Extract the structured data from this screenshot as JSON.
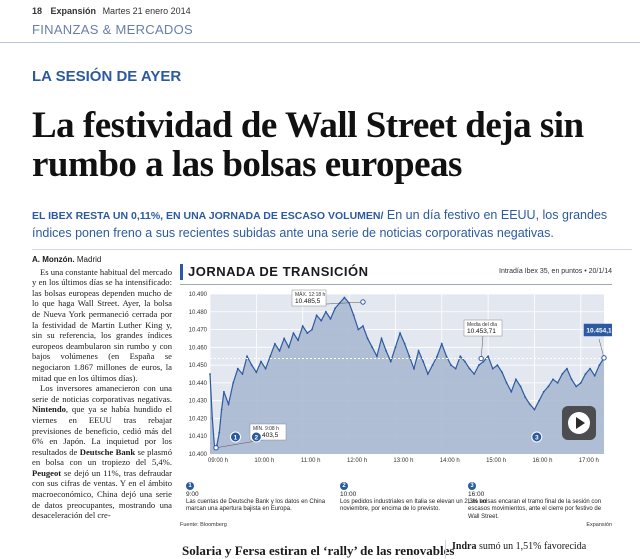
{
  "masthead": {
    "page_number": "18",
    "publication": "Expansión",
    "date": "Martes 21 enero 2014"
  },
  "section": "FINANZAS & MERCADOS",
  "kicker": "LA SESIÓN DE AYER",
  "headline": "La festividad de Wall Street deja sin rumbo a las bolsas europeas",
  "deck": {
    "lead": "EL IBEX RESTA UN 0,11%, EN UNA JORNADA DE ESCASO VOLUMEN/",
    "text": " En un día festivo en EEUU, los grandes índices ponen freno a sus recientes subidas ante una serie de noticias corporativas negativas."
  },
  "article": {
    "byline_name": "A. Monzón.",
    "byline_place": " Madrid",
    "p1": "Es una constante habitual del mercado y en los últimos días se ha intensificado: las bolsas europeas dependen mucho de lo que haga Wall Street. Ayer, la bolsa de Nueva York permaneció cerrada por la festividad de Martin Luther King y, sin su referencia, los grandes índices europeos deambularon sin rumbo y con bajos volúmenes (en España se negociaron 1.867 millones de euros, la mitad que en los últimos días).",
    "p2a": "Los inversores amanecieron con una serie de noticias corporativas negativas. ",
    "p2_bold": "Nintendo",
    "p2b": ", que ya se había hundido el viernes en EEUU tras rebajar previsiones de beneficio, cedió más del 6% en Japón. La inquietud por los resultados de ",
    "p2_bold2": "Deutsche Bank",
    "p2c": " se plasmó en bolsa con un tropiezo del 5,4%. ",
    "p2_bold3": "Peugeot",
    "p2d": " se dejó un 11%, tras defraudar con sus cifras de ventas. Y en el ámbito macroeconómico, China dejó una serie de datos preocupantes, mostrando una desaceleración del cre-"
  },
  "chart_data": {
    "type": "line",
    "title": "JORNADA DE TRANSICIÓN",
    "subtitle": "Intradía Ibex 35, en puntos • 20/1/14",
    "x_ticks": [
      "09:00 h",
      "10:00 h",
      "11:00 h",
      "12:00 h",
      "13:00 h",
      "14:00 h",
      "15:00 h",
      "16:00 h",
      "17:00 h"
    ],
    "y_ticks": [
      "10.490",
      "10.480",
      "10.470",
      "10.460",
      "10.450",
      "10.440",
      "10.430",
      "10.420",
      "10.410",
      "10.400"
    ],
    "ylim": [
      10400,
      10490
    ],
    "x_hours": [
      9.0,
      9.05,
      9.1,
      9.15,
      9.2,
      9.25,
      9.3,
      9.4,
      9.5,
      9.6,
      9.7,
      9.8,
      9.9,
      10.0,
      10.1,
      10.2,
      10.3,
      10.4,
      10.5,
      10.6,
      10.7,
      10.8,
      10.9,
      11.0,
      11.1,
      11.2,
      11.3,
      11.4,
      11.5,
      11.6,
      11.7,
      11.8,
      11.9,
      12.0,
      12.1,
      12.2,
      12.3,
      12.4,
      12.5,
      12.6,
      12.7,
      12.8,
      12.9,
      13.0,
      13.1,
      13.2,
      13.3,
      13.4,
      13.5,
      13.6,
      13.7,
      13.8,
      13.9,
      14.0,
      14.1,
      14.2,
      14.3,
      14.4,
      14.5,
      14.6,
      14.7,
      14.8,
      14.9,
      15.0,
      15.1,
      15.2,
      15.3,
      15.4,
      15.5,
      15.6,
      15.7,
      15.8,
      15.9,
      16.0,
      16.1,
      16.2,
      16.3,
      16.4,
      16.5,
      16.6,
      16.7,
      16.8,
      16.9,
      17.0,
      17.1,
      17.2,
      17.3,
      17.4,
      17.5
    ],
    "values": [
      10445,
      10420,
      10403,
      10405,
      10412,
      10425,
      10435,
      10428,
      10440,
      10448,
      10445,
      10455,
      10450,
      10446,
      10452,
      10448,
      10455,
      10462,
      10458,
      10465,
      10460,
      10468,
      10464,
      10472,
      10468,
      10470,
      10478,
      10475,
      10480,
      10476,
      10482,
      10485,
      10488,
      10485,
      10478,
      10470,
      10472,
      10465,
      10460,
      10455,
      10465,
      10458,
      10452,
      10460,
      10468,
      10462,
      10455,
      10448,
      10458,
      10452,
      10445,
      10450,
      10455,
      10462,
      10455,
      10450,
      10448,
      10455,
      10452,
      10448,
      10445,
      10450,
      10452,
      10455,
      10448,
      10450,
      10446,
      10440,
      10435,
      10442,
      10438,
      10432,
      10428,
      10425,
      10430,
      10435,
      10438,
      10442,
      10440,
      10445,
      10448,
      10442,
      10438,
      10440,
      10445,
      10448,
      10444,
      10450,
      10454
    ],
    "callouts": [
      {
        "label": "MÁX. 12:18 h",
        "value": "10.485,5",
        "x_hour": 12.3,
        "y": 10485.5
      },
      {
        "label": "MÍN. 9:08 h",
        "value": "10.403,5",
        "x_hour": 9.13,
        "y": 10403.5
      },
      {
        "label": "Media del día",
        "value": "10.453,71",
        "x_hour": 14.85,
        "y": 10453.71
      },
      {
        "label": "",
        "value": "10.454,1",
        "x_hour": 17.5,
        "y": 10454.1
      }
    ],
    "markers": [
      {
        "id": "1",
        "x_hour": 9.55
      },
      {
        "id": "2",
        "x_hour": 10.0
      },
      {
        "id": "3",
        "x_hour": 16.05
      }
    ]
  },
  "notes": [
    {
      "id": "1",
      "time": "9:00",
      "text": "Las cuentas de Deutsche Bank y los datos en China marcan una apertura bajista en Europa."
    },
    {
      "id": "2",
      "time": "10:00",
      "text": "Los pedidos industriales en Italia se elevan un 2,3% en noviembre, por encima de lo previsto."
    },
    {
      "id": "3",
      "time": "16:00",
      "text": "Las bolsas encaran el tramo final de la sesión con escasos movimientos, ante el cierre por festivo de Wall Street."
    }
  ],
  "source": "Fuente: Bloomberg",
  "credit": "Expansión",
  "bottom": {
    "headline": "Solaria y Fersa estiran el ‘rally’ de las renovables",
    "col_bold": "Indra",
    "col_text": " sumó un 1,51% favorecida"
  },
  "colors": {
    "accent": "#2c5aa0",
    "area_fill": "#a9b9d2",
    "plot_bg": "#e3e8f0"
  }
}
